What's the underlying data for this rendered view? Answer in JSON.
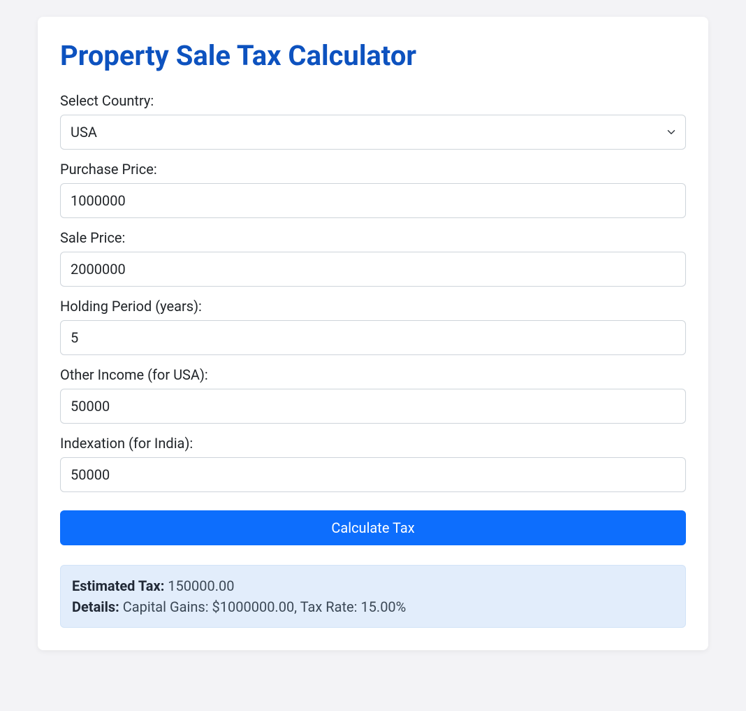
{
  "title": "Property Sale Tax Calculator",
  "colors": {
    "title": "#0d52bf",
    "button_bg": "#0d6efd",
    "button_text": "#ffffff",
    "alert_bg": "#e2edfb",
    "page_bg": "#f3f3f6",
    "card_bg": "#ffffff",
    "border": "#ced4da",
    "text": "#212529"
  },
  "form": {
    "country": {
      "label": "Select Country:",
      "value": "USA"
    },
    "purchase_price": {
      "label": "Purchase Price:",
      "value": "1000000"
    },
    "sale_price": {
      "label": "Sale Price:",
      "value": "2000000"
    },
    "holding_period": {
      "label": "Holding Period (years):",
      "value": "5"
    },
    "other_income": {
      "label": "Other Income (for USA):",
      "value": "50000"
    },
    "indexation": {
      "label": "Indexation (for India):",
      "value": "50000"
    },
    "submit_label": "Calculate Tax"
  },
  "result": {
    "estimated_tax_label": "Estimated Tax:",
    "estimated_tax_value": "150000.00",
    "details_label": "Details:",
    "details_value": "Capital Gains: $1000000.00, Tax Rate: 15.00%"
  }
}
